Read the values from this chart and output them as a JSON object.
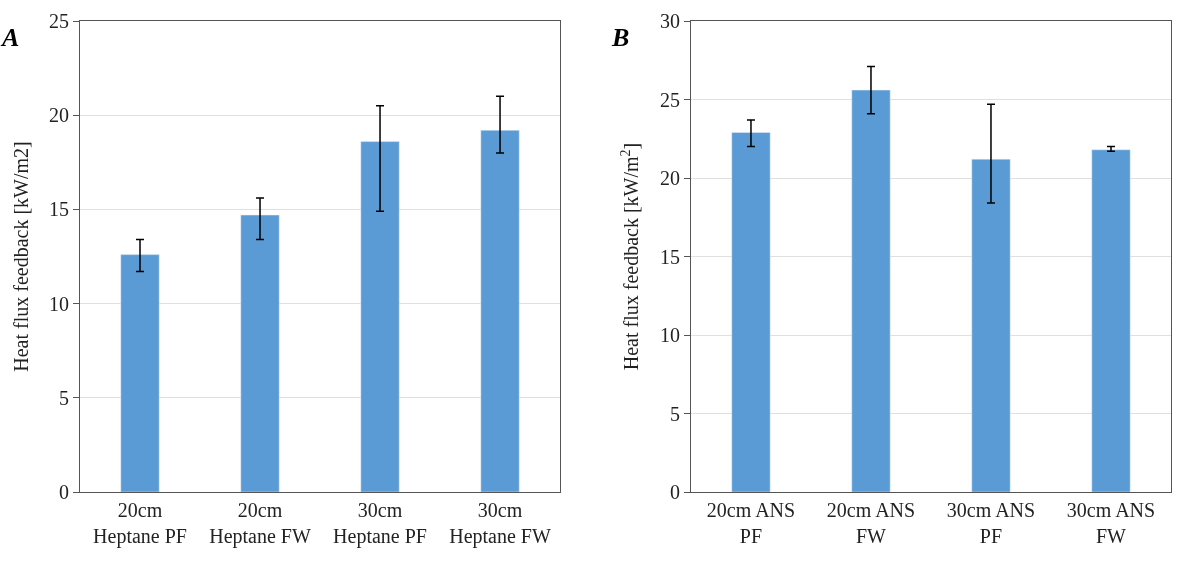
{
  "chart_data": [
    {
      "type": "bar",
      "title": "A",
      "ylabel": "Heat flux feedback [kW/m2]",
      "categories": [
        "20cm Heptane PF",
        "20cm Heptane FW",
        "30cm Heptane PF",
        "30cm Heptane FW"
      ],
      "values": [
        12.6,
        14.7,
        18.6,
        19.2
      ],
      "color": "#5b9bd5",
      "errors": [
        [
          11.7,
          13.4
        ],
        [
          13.4,
          15.6
        ],
        [
          14.9,
          20.5
        ],
        [
          18.0,
          21.0
        ]
      ],
      "ylim": [
        0,
        25
      ],
      "yticks": [
        0,
        5,
        10,
        15,
        20,
        25
      ],
      "grid": "y"
    },
    {
      "type": "bar",
      "title": "B",
      "ylabel": "Heat flux feedback [kW/m$^{2}$]",
      "categories": [
        "20cm ANS PF",
        "20cm ANS FW",
        "30cm ANS PF",
        "30cm ANS FW"
      ],
      "values": [
        22.9,
        25.6,
        21.2,
        21.8
      ],
      "color": "#5b9bd5",
      "errors": [
        [
          22.0,
          23.7
        ],
        [
          24.1,
          27.1
        ],
        [
          18.4,
          24.7
        ],
        [
          21.7,
          22.0
        ]
      ],
      "ylim": [
        0,
        30
      ],
      "yticks": [
        0,
        5,
        10,
        15,
        20,
        25,
        30
      ],
      "grid": "y"
    }
  ]
}
